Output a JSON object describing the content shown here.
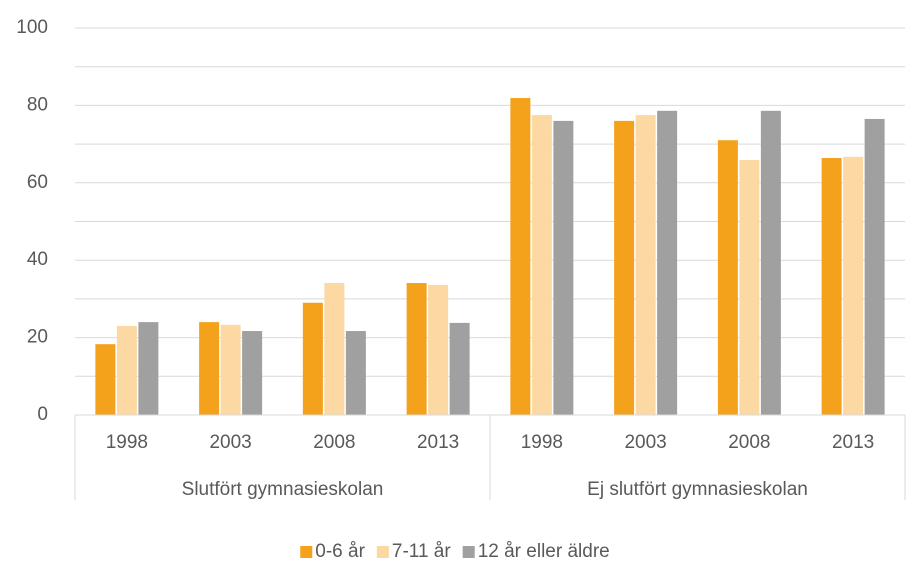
{
  "chart_data": {
    "type": "bar",
    "groups": [
      {
        "label": "Slutfört gymnasieskolan",
        "categories": [
          "1998",
          "2003",
          "2008",
          "2013"
        ]
      },
      {
        "label": "Ej slutfört gymnasieskolan",
        "categories": [
          "1998",
          "2003",
          "2008",
          "2013"
        ]
      }
    ],
    "series": [
      {
        "name": "0-6 år",
        "color": "#f4a11c",
        "values": [
          18.3,
          24,
          29,
          34.1,
          81.9,
          76,
          71,
          66.4
        ]
      },
      {
        "name": "7-11 år",
        "color": "#fcd9a3",
        "values": [
          23,
          23.3,
          34.1,
          33.6,
          77.5,
          77.5,
          65.9,
          66.7
        ]
      },
      {
        "name": "12 år eller äldre",
        "color": "#a0a0a0",
        "values": [
          24,
          21.7,
          21.7,
          23.8,
          76,
          78.6,
          78.6,
          76.5
        ]
      }
    ],
    "ylim": [
      0,
      100
    ],
    "yticks": [
      0,
      20,
      40,
      60,
      80,
      100
    ],
    "minor_grid": [
      10,
      30,
      50,
      70,
      90
    ],
    "grid": true,
    "legend": "bottom"
  }
}
